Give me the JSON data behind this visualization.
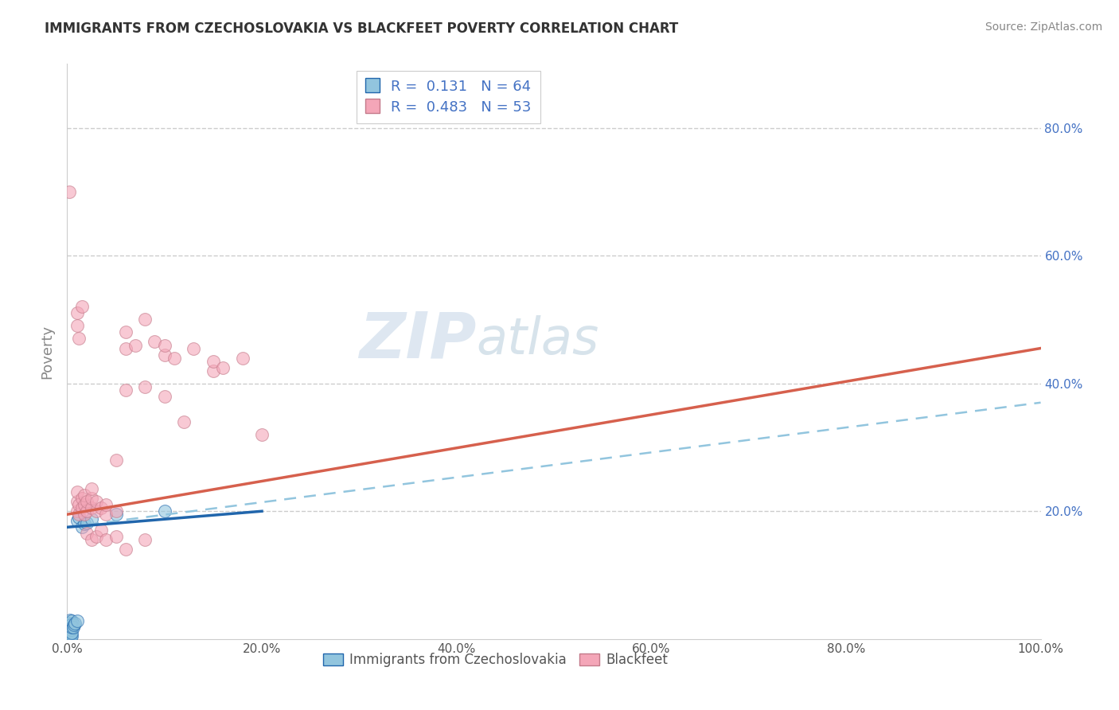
{
  "title": "IMMIGRANTS FROM CZECHOSLOVAKIA VS BLACKFEET POVERTY CORRELATION CHART",
  "source": "Source: ZipAtlas.com",
  "ylabel": "Poverty",
  "watermark": "ZIPatlas",
  "blue_color": "#92c5de",
  "pink_color": "#f4a6b8",
  "blue_line_color": "#2166ac",
  "pink_line_color": "#d6604d",
  "dashed_line_color": "#92c5de",
  "blue_scatter": [
    [
      0.001,
      0.0
    ],
    [
      0.001,
      0.0
    ],
    [
      0.001,
      0.001
    ],
    [
      0.001,
      0.001
    ],
    [
      0.001,
      0.002
    ],
    [
      0.001,
      0.002
    ],
    [
      0.001,
      0.003
    ],
    [
      0.001,
      0.003
    ],
    [
      0.001,
      0.004
    ],
    [
      0.001,
      0.005
    ],
    [
      0.001,
      0.006
    ],
    [
      0.001,
      0.007
    ],
    [
      0.001,
      0.008
    ],
    [
      0.001,
      0.009
    ],
    [
      0.001,
      0.01
    ],
    [
      0.001,
      0.011
    ],
    [
      0.001,
      0.012
    ],
    [
      0.001,
      0.013
    ],
    [
      0.001,
      0.014
    ],
    [
      0.001,
      0.015
    ],
    [
      0.002,
      0.0
    ],
    [
      0.002,
      0.001
    ],
    [
      0.002,
      0.002
    ],
    [
      0.002,
      0.003
    ],
    [
      0.002,
      0.004
    ],
    [
      0.002,
      0.005
    ],
    [
      0.002,
      0.006
    ],
    [
      0.002,
      0.007
    ],
    [
      0.002,
      0.008
    ],
    [
      0.002,
      0.01
    ],
    [
      0.002,
      0.012
    ],
    [
      0.002,
      0.015
    ],
    [
      0.002,
      0.018
    ],
    [
      0.002,
      0.02
    ],
    [
      0.002,
      0.022
    ],
    [
      0.002,
      0.025
    ],
    [
      0.003,
      0.002
    ],
    [
      0.003,
      0.005
    ],
    [
      0.003,
      0.008
    ],
    [
      0.003,
      0.012
    ],
    [
      0.003,
      0.016
    ],
    [
      0.003,
      0.02
    ],
    [
      0.003,
      0.025
    ],
    [
      0.003,
      0.03
    ],
    [
      0.004,
      0.003
    ],
    [
      0.004,
      0.008
    ],
    [
      0.004,
      0.015
    ],
    [
      0.004,
      0.022
    ],
    [
      0.005,
      0.005
    ],
    [
      0.005,
      0.01
    ],
    [
      0.005,
      0.018
    ],
    [
      0.005,
      0.028
    ],
    [
      0.006,
      0.018
    ],
    [
      0.007,
      0.022
    ],
    [
      0.008,
      0.025
    ],
    [
      0.01,
      0.028
    ],
    [
      0.01,
      0.185
    ],
    [
      0.012,
      0.19
    ],
    [
      0.015,
      0.175
    ],
    [
      0.018,
      0.18
    ],
    [
      0.02,
      0.182
    ],
    [
      0.025,
      0.188
    ],
    [
      0.05,
      0.195
    ],
    [
      0.1,
      0.2
    ]
  ],
  "pink_scatter": [
    [
      0.002,
      0.7
    ],
    [
      0.01,
      0.2
    ],
    [
      0.01,
      0.215
    ],
    [
      0.01,
      0.23
    ],
    [
      0.012,
      0.195
    ],
    [
      0.012,
      0.21
    ],
    [
      0.015,
      0.205
    ],
    [
      0.015,
      0.22
    ],
    [
      0.018,
      0.195
    ],
    [
      0.018,
      0.21
    ],
    [
      0.018,
      0.225
    ],
    [
      0.02,
      0.2
    ],
    [
      0.02,
      0.215
    ],
    [
      0.025,
      0.205
    ],
    [
      0.025,
      0.22
    ],
    [
      0.025,
      0.235
    ],
    [
      0.03,
      0.2
    ],
    [
      0.03,
      0.215
    ],
    [
      0.035,
      0.205
    ],
    [
      0.04,
      0.195
    ],
    [
      0.04,
      0.21
    ],
    [
      0.05,
      0.2
    ],
    [
      0.05,
      0.28
    ],
    [
      0.06,
      0.455
    ],
    [
      0.06,
      0.48
    ],
    [
      0.07,
      0.46
    ],
    [
      0.08,
      0.5
    ],
    [
      0.09,
      0.465
    ],
    [
      0.1,
      0.445
    ],
    [
      0.1,
      0.46
    ],
    [
      0.11,
      0.44
    ],
    [
      0.12,
      0.34
    ],
    [
      0.13,
      0.455
    ],
    [
      0.15,
      0.42
    ],
    [
      0.15,
      0.435
    ],
    [
      0.16,
      0.425
    ],
    [
      0.18,
      0.44
    ],
    [
      0.2,
      0.32
    ],
    [
      0.01,
      0.49
    ],
    [
      0.01,
      0.51
    ],
    [
      0.015,
      0.52
    ],
    [
      0.012,
      0.47
    ],
    [
      0.02,
      0.165
    ],
    [
      0.025,
      0.155
    ],
    [
      0.03,
      0.16
    ],
    [
      0.035,
      0.17
    ],
    [
      0.04,
      0.155
    ],
    [
      0.05,
      0.16
    ],
    [
      0.06,
      0.14
    ],
    [
      0.08,
      0.155
    ],
    [
      0.06,
      0.39
    ],
    [
      0.08,
      0.395
    ],
    [
      0.1,
      0.38
    ]
  ],
  "xlim": [
    0.0,
    1.0
  ],
  "ylim": [
    0.0,
    0.9
  ],
  "xticks": [
    0.0,
    0.2,
    0.4,
    0.6,
    0.8,
    1.0
  ],
  "yticks": [
    0.0,
    0.2,
    0.4,
    0.6,
    0.8
  ],
  "xticklabels": [
    "0.0%",
    "20.0%",
    "40.0%",
    "60.0%",
    "80.0%",
    "100.0%"
  ],
  "left_yticklabels": [
    "",
    "",
    "",
    "",
    ""
  ],
  "right_yticklabels": [
    "20.0%",
    "40.0%",
    "60.0%",
    "80.0%"
  ],
  "right_yticks": [
    0.2,
    0.4,
    0.6,
    0.8
  ],
  "grid_color": "#cccccc",
  "background_color": "#ffffff",
  "title_color": "#333333",
  "axis_label_color": "#888888",
  "tick_label_color": "#555555"
}
